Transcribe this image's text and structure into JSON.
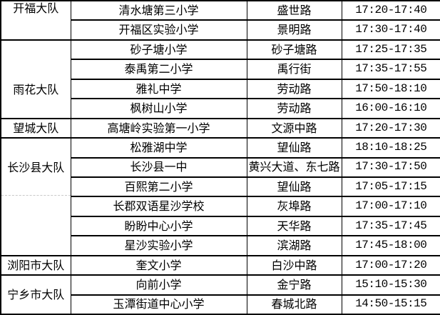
{
  "colors": {
    "background": "#ffffff",
    "grid": "#000000",
    "text": "#000000",
    "dashed_divider": "#c8c8c8"
  },
  "chart_data": {
    "type": "table",
    "columns": [
      "brigade",
      "school",
      "road",
      "time"
    ],
    "groups": [
      {
        "brigade": "开福大队",
        "rows": [
          {
            "school": "清水塘第三小学",
            "road": "盛世路",
            "time": "17:20-17:40"
          },
          {
            "school": "开福区实验小学",
            "road": "景明路",
            "time": "17:30-17:40"
          }
        ]
      },
      {
        "brigade": "雨花大队",
        "rows": [
          {
            "school": "砂子塘小学",
            "road": "砂子塘路",
            "time": "17:25-17:35"
          },
          {
            "school": "泰禹第二小学",
            "road": "禹行街",
            "time": "17:35-17:55"
          },
          {
            "school": "雅礼中学",
            "road": "劳动路",
            "time": "17:50-18:10"
          },
          {
            "school": "枫树山小学",
            "road": "劳动路",
            "time": "16:00-16:10"
          }
        ]
      },
      {
        "brigade": "望城大队",
        "rows": [
          {
            "school": "高塘岭实验第一小学",
            "road": "文源中路",
            "time": "17:20-17:30"
          }
        ]
      },
      {
        "brigade": "长沙县大队",
        "dashed_divider_after_row": 3,
        "rows": [
          {
            "school": "松雅湖中学",
            "road": "望仙路",
            "time": "18:10-18:25"
          },
          {
            "school": "长沙县一中",
            "road": "黄兴大道、东七路",
            "time": "17:30-17:50"
          },
          {
            "school": "百熙第二小学",
            "road": "望仙路",
            "time": "17:05-17:15"
          },
          {
            "school": "长郡双语星沙学校",
            "road": "灰埠路",
            "time": "17:00-17:10"
          },
          {
            "school": "盼盼中心小学",
            "road": "天华路",
            "time": "17:35-17:45"
          },
          {
            "school": "星沙实验小学",
            "road": "滨湖路",
            "time": "17:45-18:00"
          }
        ]
      },
      {
        "brigade": "浏阳市大队",
        "rows": [
          {
            "school": "奎文小学",
            "road": "白沙中路",
            "time": "17:00-17:20"
          }
        ]
      },
      {
        "brigade": "宁乡市大队",
        "rows": [
          {
            "school": "向前小学",
            "road": "金宁路",
            "time": "15:10-15:30"
          },
          {
            "school": "玉潭街道中心小学",
            "road": "春城北路",
            "time": "14:50-15:15"
          }
        ]
      }
    ]
  }
}
